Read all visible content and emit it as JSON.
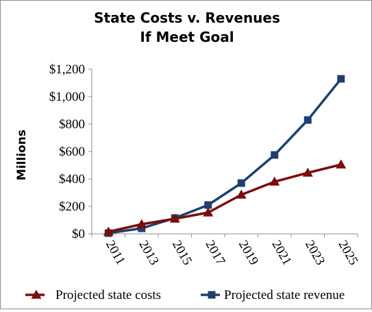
{
  "chart_data": {
    "type": "line",
    "title_line1": "State Costs v. Revenues",
    "title_line2": "If Meet Goal",
    "ylabel": "Millions",
    "xlabel": "",
    "x": [
      "2011",
      "2013",
      "2015",
      "2017",
      "2019",
      "2021",
      "2023",
      "2025"
    ],
    "y_ticks": [
      "$0",
      "$200",
      "$400",
      "$600",
      "$800",
      "$1,000",
      "$1,200"
    ],
    "ylim": [
      0,
      1200
    ],
    "grid": false,
    "legend_position": "bottom",
    "series": [
      {
        "name": "Projected state costs",
        "marker": "triangle",
        "color": "#7b0c0c",
        "values": [
          15,
          70,
          110,
          155,
          285,
          380,
          445,
          505
        ]
      },
      {
        "name": "Projected state revenue",
        "marker": "square",
        "color": "#1f3f6f",
        "values": [
          5,
          40,
          115,
          210,
          370,
          575,
          830,
          1130
        ]
      }
    ]
  }
}
